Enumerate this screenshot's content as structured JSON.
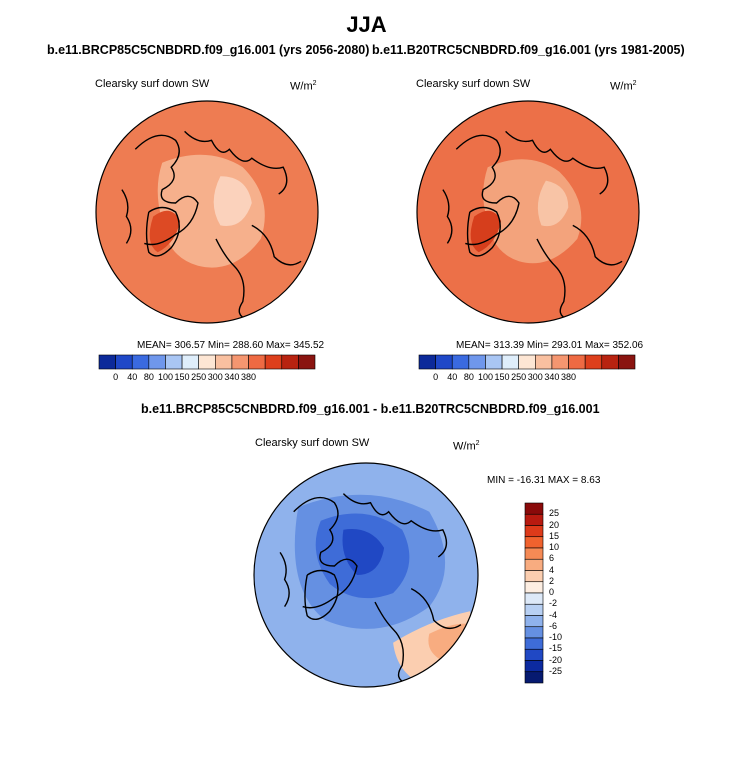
{
  "title": "JJA",
  "panels": {
    "left": {
      "title": "b.e11.BRCP85C5CNBDRD.f09_g16.001 (yrs 2056-2080)",
      "variable": "Clearsky surf down SW",
      "units": "W/m",
      "units_exp": "2",
      "stats": "MEAN= 306.57  Min= 288.60  Max= 345.52"
    },
    "right": {
      "title": "b.e11.B20TRC5CNBDRD.f09_g16.001 (yrs 1981-2005)",
      "variable": "Clearsky surf down SW",
      "units": "W/m",
      "units_exp": "2",
      "stats": "MEAN= 313.39  Min= 293.01  Max= 352.06"
    },
    "diff": {
      "title": "b.e11.BRCP85C5CNBDRD.f09_g16.001 - b.e11.B20TRC5CNBDRD.f09_g16.001",
      "variable": "Clearsky surf down SW",
      "units": "W/m",
      "units_exp": "2",
      "stats": "MIN = -16.31 MAX =   8.63"
    }
  },
  "chart_data": [
    {
      "type": "heatmap",
      "projection": "north-polar-stereographic",
      "title": "b.e11.BRCP85C5CNBDRD.f09_g16.001 (yrs 2056-2080)",
      "variable": "Clearsky surf down SW",
      "units": "W/m2",
      "mean": 306.57,
      "min": 288.6,
      "max": 345.52,
      "colorbar_levels": [
        0,
        40,
        80,
        100,
        150,
        250,
        300,
        340,
        380
      ],
      "colorbar_colors": [
        "#0c2a9a",
        "#1f48c8",
        "#3a6ae0",
        "#6f97ec",
        "#a9c6f4",
        "#dfeefb",
        "#fde6d4",
        "#f9c0a0",
        "#f59670",
        "#ee6a43",
        "#dd3f1c",
        "#b82310",
        "#8a1410"
      ]
    },
    {
      "type": "heatmap",
      "projection": "north-polar-stereographic",
      "title": "b.e11.B20TRC5CNBDRD.f09_g16.001 (yrs 1981-2005)",
      "variable": "Clearsky surf down SW",
      "units": "W/m2",
      "mean": 313.39,
      "min": 293.01,
      "max": 352.06,
      "colorbar_levels": [
        0,
        40,
        80,
        100,
        150,
        250,
        300,
        340,
        380
      ],
      "colorbar_colors": [
        "#0c2a9a",
        "#1f48c8",
        "#3a6ae0",
        "#6f97ec",
        "#a9c6f4",
        "#dfeefb",
        "#fde6d4",
        "#f9c0a0",
        "#f59670",
        "#ee6a43",
        "#dd3f1c",
        "#b82310",
        "#8a1410"
      ]
    },
    {
      "type": "heatmap",
      "projection": "north-polar-stereographic",
      "title": "b.e11.BRCP85C5CNBDRD.f09_g16.001 - b.e11.B20TRC5CNBDRD.f09_g16.001",
      "variable": "Clearsky surf down SW",
      "units": "W/m2",
      "min": -16.31,
      "max": 8.63,
      "colorbar_levels": [
        25,
        20,
        15,
        10,
        6,
        4,
        2,
        0,
        -2,
        -4,
        -6,
        -10,
        -15,
        -20,
        -25
      ],
      "colorbar_colors": [
        "#8a0a0a",
        "#b81a10",
        "#dd3a1a",
        "#f0622e",
        "#f58a55",
        "#f8ac80",
        "#fbceb0",
        "#fdeee2",
        "#dde9f8",
        "#b8d0f3",
        "#8fb2ec",
        "#6590e2",
        "#3e6cd8",
        "#2048c4",
        "#0c2aa0",
        "#061a70"
      ]
    }
  ]
}
